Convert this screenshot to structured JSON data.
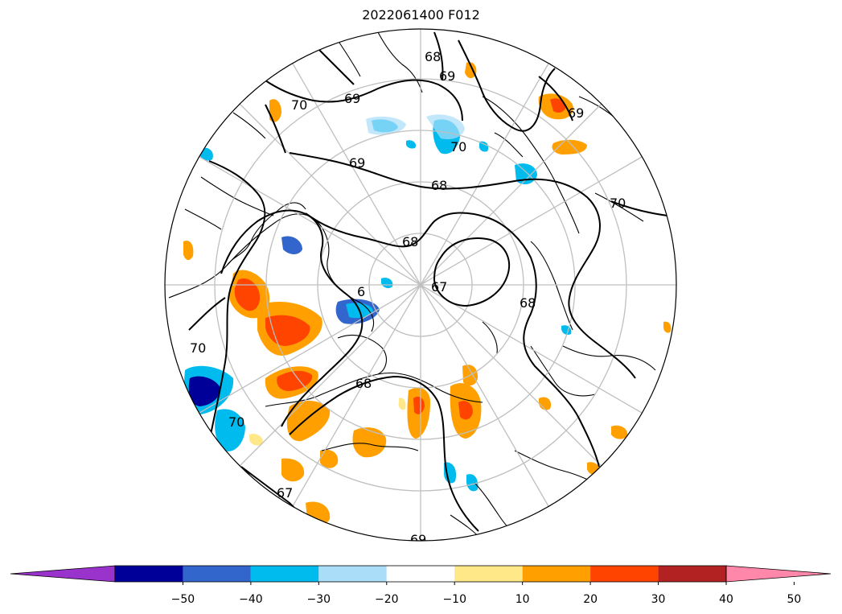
{
  "title": "2022061400 F012",
  "contour_labels": [
    "68",
    "69",
    "70",
    "69",
    "70",
    "69",
    "69",
    "70",
    "68",
    "67",
    "68",
    "6",
    "68",
    "70",
    "70",
    "67",
    "69",
    "68"
  ],
  "colorbar": {
    "bins": [
      {
        "color": "#9933cc"
      },
      {
        "color": "#000099"
      },
      {
        "color": "#3366cc"
      },
      {
        "color": "#00bbee"
      },
      {
        "color": "#aaddf8"
      },
      {
        "color": "#ffffff"
      },
      {
        "color": "#ffe888"
      },
      {
        "color": "#ffa000"
      },
      {
        "color": "#ff4400"
      },
      {
        "color": "#b22222"
      },
      {
        "color": "#ff88aa"
      }
    ],
    "ticks": [
      "−50",
      "−40",
      "−30",
      "−20",
      "−10",
      "10",
      "20",
      "30",
      "40",
      "50"
    ]
  }
}
